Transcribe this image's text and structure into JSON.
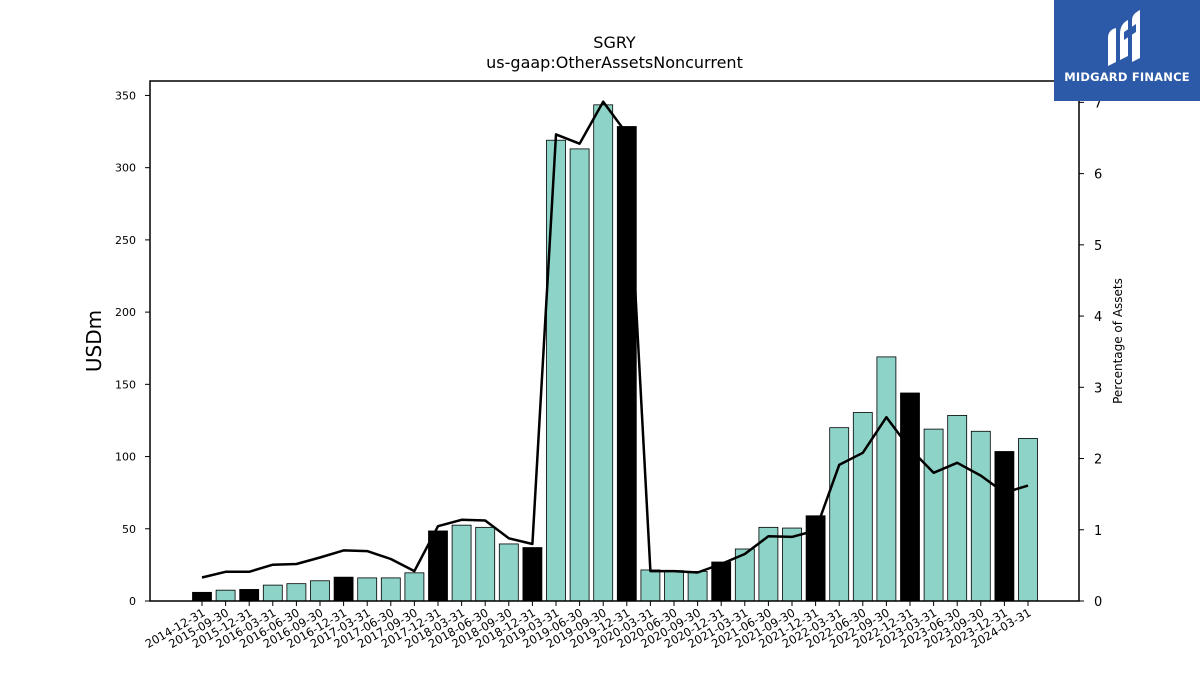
{
  "logo": {
    "text": "MIDGARD FINANCE",
    "bg_color": "#2d5aa8"
  },
  "chart_data": {
    "type": "bar",
    "title": "SGRY",
    "subtitle": "us-gaap:OtherAssetsNoncurrent",
    "ylabel": "USDm",
    "ylabel_right": "Percentage of Assets",
    "ylim": [
      0,
      360
    ],
    "ylim_right": [
      0,
      7.3
    ],
    "yticks": [
      0,
      50,
      100,
      150,
      200,
      250,
      300,
      350
    ],
    "yticks_right": [
      0,
      1,
      2,
      3,
      4,
      5,
      6,
      7
    ],
    "colors": {
      "quarterly": "#8dd3c7",
      "annual": "#000000",
      "line": "#000000"
    },
    "categories": [
      "2014-12-31",
      "2015-09-30",
      "2015-12-31",
      "2016-03-31",
      "2016-06-30",
      "2016-09-30",
      "2016-12-31",
      "2017-03-31",
      "2017-06-30",
      "2017-09-30",
      "2017-12-31",
      "2018-03-31",
      "2018-06-30",
      "2018-09-30",
      "2018-12-31",
      "2019-03-31",
      "2019-06-30",
      "2019-09-30",
      "2019-12-31",
      "2020-03-31",
      "2020-06-30",
      "2020-09-30",
      "2020-12-31",
      "2021-03-31",
      "2021-06-30",
      "2021-09-30",
      "2021-12-31",
      "2022-03-31",
      "2022-06-30",
      "2022-09-30",
      "2022-12-31",
      "2023-03-31",
      "2023-06-30",
      "2023-09-30",
      "2023-12-31",
      "2024-03-31"
    ],
    "annual_flags": [
      true,
      false,
      true,
      false,
      false,
      false,
      true,
      false,
      false,
      false,
      true,
      false,
      false,
      false,
      true,
      false,
      false,
      false,
      true,
      false,
      false,
      false,
      true,
      false,
      false,
      false,
      true,
      false,
      false,
      false,
      true,
      false,
      false,
      false,
      true,
      false
    ],
    "series": [
      {
        "type": "bar",
        "values": [
          6,
          7.5,
          8,
          11,
          12,
          14,
          16.5,
          16,
          16,
          19.5,
          48.5,
          52.5,
          51,
          39.5,
          37,
          319,
          313,
          343.5,
          328.5,
          21.5,
          21,
          20.5,
          27,
          36,
          51,
          50.5,
          59,
          120,
          130.5,
          169,
          144,
          119,
          128.5,
          117.5,
          103.5,
          112.5
        ]
      },
      {
        "type": "line",
        "axis": "right",
        "values": [
          0.33,
          0.41,
          0.41,
          0.51,
          0.52,
          0.61,
          0.71,
          0.7,
          0.59,
          0.42,
          1.05,
          1.14,
          1.13,
          0.88,
          0.8,
          6.55,
          6.42,
          7.01,
          6.56,
          0.42,
          0.42,
          0.4,
          0.52,
          0.66,
          0.91,
          0.9,
          0.99,
          1.91,
          2.08,
          2.58,
          2.14,
          1.8,
          1.94,
          1.76,
          1.52,
          1.62
        ]
      }
    ]
  }
}
